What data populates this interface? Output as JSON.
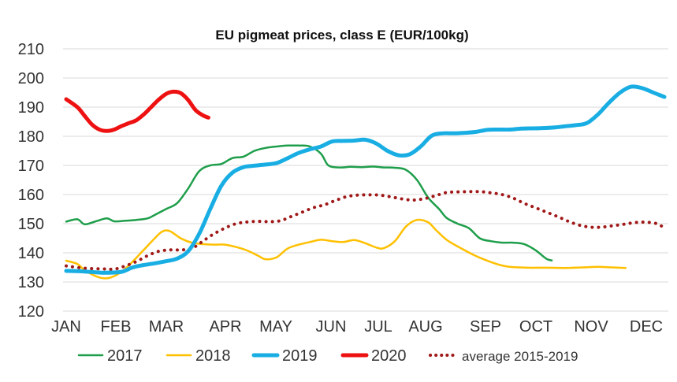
{
  "chart_data": {
    "type": "line",
    "title": "EU pigmeat prices, class E (EUR/100kg)",
    "xlabel": "",
    "ylabel": "",
    "ylim": [
      120,
      210
    ],
    "yticks": [
      120,
      130,
      140,
      150,
      160,
      170,
      180,
      190,
      200,
      210
    ],
    "months": [
      "JAN",
      "FEB",
      "MAR",
      "APR",
      "MAY",
      "JUN",
      "JUL",
      "AUG",
      "SEP",
      "OCT",
      "NOV",
      "DEC"
    ],
    "grid": true,
    "legend_position": "bottom",
    "series": [
      {
        "name": "2017",
        "color": "#1e9e4a",
        "style": "solid",
        "width": 2.5,
        "points": [
          [
            0,
            150.7
          ],
          [
            0.3,
            151.5
          ],
          [
            0.5,
            149.8
          ],
          [
            0.8,
            150.8
          ],
          [
            1.1,
            151.8
          ],
          [
            1.3,
            150.8
          ],
          [
            1.6,
            151
          ],
          [
            1.9,
            151.3
          ],
          [
            2.2,
            151.8
          ],
          [
            2.4,
            153
          ],
          [
            2.7,
            155
          ],
          [
            3.0,
            157
          ],
          [
            3.3,
            162
          ],
          [
            3.6,
            168
          ],
          [
            3.9,
            170
          ],
          [
            4.2,
            170.5
          ],
          [
            4.5,
            172.5
          ],
          [
            4.8,
            173
          ],
          [
            5.1,
            175
          ],
          [
            5.4,
            176
          ],
          [
            5.7,
            176.5
          ],
          [
            6.0,
            176.8
          ],
          [
            6.3,
            176.8
          ],
          [
            6.6,
            176.5
          ],
          [
            6.9,
            174
          ],
          [
            7.1,
            170
          ],
          [
            7.4,
            169.3
          ],
          [
            7.7,
            169.5
          ],
          [
            8.0,
            169.4
          ],
          [
            8.3,
            169.6
          ],
          [
            8.6,
            169.3
          ],
          [
            8.9,
            169.2
          ],
          [
            9.2,
            168.5
          ],
          [
            9.5,
            165
          ],
          [
            9.8,
            159
          ],
          [
            10.1,
            155
          ],
          [
            10.3,
            152
          ],
          [
            10.6,
            150
          ],
          [
            10.9,
            148.5
          ],
          [
            11.2,
            145
          ],
          [
            11.5,
            144
          ],
          [
            11.8,
            143.5
          ],
          [
            12.1,
            143.5
          ],
          [
            12.4,
            143
          ],
          [
            12.7,
            141
          ],
          [
            13.0,
            138
          ],
          [
            13.15,
            137.4
          ]
        ]
      },
      {
        "name": "2018",
        "color": "#ffc000",
        "style": "solid",
        "width": 2.5,
        "points": [
          [
            0,
            137.3
          ],
          [
            0.3,
            136.2
          ],
          [
            0.5,
            134
          ],
          [
            0.8,
            132
          ],
          [
            1.0,
            131.3
          ],
          [
            1.2,
            131.5
          ],
          [
            1.5,
            133.5
          ],
          [
            1.8,
            137
          ],
          [
            2.1,
            141
          ],
          [
            2.4,
            145
          ],
          [
            2.6,
            147.3
          ],
          [
            2.8,
            147.5
          ],
          [
            3.1,
            145
          ],
          [
            3.4,
            143.5
          ],
          [
            3.7,
            143
          ],
          [
            4.0,
            142.8
          ],
          [
            4.3,
            142.8
          ],
          [
            4.6,
            142
          ],
          [
            4.9,
            140.8
          ],
          [
            5.2,
            139
          ],
          [
            5.4,
            137.8
          ],
          [
            5.7,
            138.5
          ],
          [
            6.0,
            141.5
          ],
          [
            6.3,
            142.8
          ],
          [
            6.6,
            143.7
          ],
          [
            6.9,
            144.5
          ],
          [
            7.2,
            144
          ],
          [
            7.5,
            143.7
          ],
          [
            7.8,
            144.4
          ],
          [
            8.1,
            143.3
          ],
          [
            8.4,
            141.8
          ],
          [
            8.6,
            141.6
          ],
          [
            8.9,
            144
          ],
          [
            9.2,
            149
          ],
          [
            9.5,
            151.3
          ],
          [
            9.8,
            150.5
          ],
          [
            10.0,
            148
          ],
          [
            10.3,
            144.5
          ],
          [
            10.7,
            141.5
          ],
          [
            11.0,
            139.5
          ],
          [
            11.3,
            137.8
          ],
          [
            11.7,
            136
          ],
          [
            12.0,
            135.2
          ],
          [
            12.5,
            134.9
          ],
          [
            13.0,
            134.9
          ],
          [
            13.5,
            134.8
          ],
          [
            14.0,
            135
          ],
          [
            14.4,
            135.2
          ],
          [
            14.8,
            135
          ],
          [
            15.15,
            134.8
          ]
        ]
      },
      {
        "name": "2019",
        "color": "#19aee3",
        "style": "solid",
        "width": 5,
        "points": [
          [
            0,
            133.8
          ],
          [
            0.5,
            133.6
          ],
          [
            1.0,
            133.2
          ],
          [
            1.5,
            133.5
          ],
          [
            1.8,
            135
          ],
          [
            2.1,
            135.8
          ],
          [
            2.4,
            136.4
          ],
          [
            2.7,
            137.1
          ],
          [
            3.0,
            138
          ],
          [
            3.3,
            140.5
          ],
          [
            3.6,
            146.5
          ],
          [
            3.9,
            155
          ],
          [
            4.2,
            163
          ],
          [
            4.5,
            167.5
          ],
          [
            4.8,
            169.4
          ],
          [
            5.1,
            169.9
          ],
          [
            5.4,
            170.3
          ],
          [
            5.7,
            170.8
          ],
          [
            6.0,
            172.5
          ],
          [
            6.3,
            174.3
          ],
          [
            6.6,
            175.5
          ],
          [
            6.9,
            176.5
          ],
          [
            7.2,
            178.2
          ],
          [
            7.5,
            178.4
          ],
          [
            7.8,
            178.5
          ],
          [
            8.1,
            178.8
          ],
          [
            8.4,
            177.5
          ],
          [
            8.7,
            175
          ],
          [
            9.0,
            173.5
          ],
          [
            9.3,
            173.8
          ],
          [
            9.6,
            176.5
          ],
          [
            9.9,
            180.2
          ],
          [
            10.2,
            181
          ],
          [
            10.5,
            181
          ],
          [
            10.8,
            181.2
          ],
          [
            11.1,
            181.5
          ],
          [
            11.4,
            182.2
          ],
          [
            11.7,
            182.3
          ],
          [
            12.0,
            182.3
          ],
          [
            12.3,
            182.6
          ],
          [
            12.6,
            182.7
          ],
          [
            12.9,
            182.8
          ],
          [
            13.2,
            183
          ],
          [
            13.5,
            183.4
          ],
          [
            13.8,
            183.8
          ],
          [
            14.1,
            184.5
          ],
          [
            14.4,
            187.5
          ],
          [
            14.7,
            191.5
          ],
          [
            15.0,
            195
          ],
          [
            15.3,
            197
          ],
          [
            15.6,
            196.5
          ],
          [
            15.9,
            195
          ],
          [
            16.2,
            193.5
          ]
        ]
      },
      {
        "name": "2020",
        "color": "#ee1111",
        "style": "solid",
        "width": 5,
        "points": [
          [
            0,
            192.7
          ],
          [
            0.3,
            190
          ],
          [
            0.5,
            187
          ],
          [
            0.7,
            184
          ],
          [
            0.9,
            182.3
          ],
          [
            1.1,
            181.8
          ],
          [
            1.3,
            182.3
          ],
          [
            1.5,
            183.5
          ],
          [
            1.7,
            184.5
          ],
          [
            1.9,
            185.5
          ],
          [
            2.1,
            187.5
          ],
          [
            2.3,
            190
          ],
          [
            2.5,
            192.5
          ],
          [
            2.7,
            194.5
          ],
          [
            2.9,
            195.3
          ],
          [
            3.1,
            194.8
          ],
          [
            3.3,
            192.5
          ],
          [
            3.5,
            189
          ],
          [
            3.7,
            187.2
          ],
          [
            3.85,
            186.4
          ]
        ]
      },
      {
        "name": "average 2015-2019",
        "color": "#a01818",
        "style": "dotted",
        "width": 4,
        "points": [
          [
            0,
            135.5
          ],
          [
            0.5,
            134.7
          ],
          [
            1.0,
            134.5
          ],
          [
            1.3,
            134.4
          ],
          [
            1.6,
            135.5
          ],
          [
            1.9,
            137
          ],
          [
            2.2,
            139
          ],
          [
            2.5,
            140.5
          ],
          [
            2.8,
            141
          ],
          [
            3.1,
            141
          ],
          [
            3.4,
            141.5
          ],
          [
            3.7,
            144
          ],
          [
            4.0,
            146.5
          ],
          [
            4.3,
            148.5
          ],
          [
            4.6,
            150
          ],
          [
            4.9,
            150.6
          ],
          [
            5.2,
            150.8
          ],
          [
            5.5,
            150.7
          ],
          [
            5.8,
            151
          ],
          [
            6.1,
            152.5
          ],
          [
            6.4,
            154
          ],
          [
            6.7,
            155.5
          ],
          [
            7.0,
            156.5
          ],
          [
            7.3,
            158
          ],
          [
            7.6,
            159.3
          ],
          [
            7.9,
            159.8
          ],
          [
            8.2,
            159.9
          ],
          [
            8.5,
            159.8
          ],
          [
            8.8,
            159.2
          ],
          [
            9.1,
            158.5
          ],
          [
            9.4,
            158.1
          ],
          [
            9.7,
            158.6
          ],
          [
            10.0,
            159.6
          ],
          [
            10.3,
            160.7
          ],
          [
            10.6,
            160.9
          ],
          [
            10.9,
            161
          ],
          [
            11.2,
            161
          ],
          [
            11.5,
            160.6
          ],
          [
            11.8,
            160
          ],
          [
            12.1,
            158.8
          ],
          [
            12.4,
            157
          ],
          [
            12.7,
            155.5
          ],
          [
            13.0,
            154
          ],
          [
            13.3,
            152.5
          ],
          [
            13.6,
            150.8
          ],
          [
            13.9,
            149.5
          ],
          [
            14.2,
            148.8
          ],
          [
            14.5,
            148.8
          ],
          [
            14.8,
            149.3
          ],
          [
            15.1,
            149.8
          ],
          [
            15.4,
            150.4
          ],
          [
            15.7,
            150.5
          ],
          [
            16.0,
            150
          ],
          [
            16.2,
            148.5
          ]
        ]
      }
    ]
  }
}
